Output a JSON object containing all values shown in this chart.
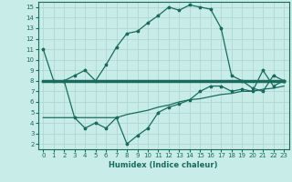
{
  "xlabel": "Humidex (Indice chaleur)",
  "xlim": [
    -0.5,
    23.5
  ],
  "ylim": [
    1.5,
    15.5
  ],
  "xticks": [
    0,
    1,
    2,
    3,
    4,
    5,
    6,
    7,
    8,
    9,
    10,
    11,
    12,
    13,
    14,
    15,
    16,
    17,
    18,
    19,
    20,
    21,
    22,
    23
  ],
  "yticks": [
    2,
    3,
    4,
    5,
    6,
    7,
    8,
    9,
    10,
    11,
    12,
    13,
    14,
    15
  ],
  "bg_color": "#c8ece8",
  "line_color": "#1a6b5e",
  "grid_color": "#b0d8d0",
  "line1_x": [
    0,
    1,
    2,
    3,
    4,
    5,
    6,
    7,
    8,
    9,
    10,
    11,
    12,
    13,
    14,
    15,
    16,
    17,
    18,
    19,
    20,
    21,
    22,
    23
  ],
  "line1_y": [
    11.0,
    8.0,
    8.0,
    8.5,
    9.0,
    8.0,
    9.5,
    11.2,
    12.5,
    12.7,
    13.5,
    14.2,
    15.0,
    14.7,
    15.2,
    15.0,
    14.8,
    13.0,
    8.5,
    8.0,
    7.3,
    7.0,
    8.5,
    8.0
  ],
  "line2_x": [
    0,
    1,
    2,
    3,
    4,
    5,
    6,
    7,
    8,
    9,
    10,
    11,
    12,
    13,
    14,
    15,
    16,
    17,
    18,
    19,
    20,
    21,
    22,
    23
  ],
  "line2_y": [
    8.0,
    8.0,
    8.0,
    8.0,
    8.0,
    8.0,
    8.0,
    8.0,
    8.0,
    8.0,
    8.0,
    8.0,
    8.0,
    8.0,
    8.0,
    8.0,
    8.0,
    8.0,
    8.0,
    8.0,
    8.0,
    8.0,
    8.0,
    8.0
  ],
  "line3_x": [
    0,
    1,
    2,
    3,
    4,
    5,
    6,
    7,
    8,
    9,
    10,
    11,
    12,
    13,
    14,
    15,
    16,
    17,
    18,
    19,
    20,
    21,
    22,
    23
  ],
  "line3_y": [
    4.5,
    4.5,
    4.5,
    4.5,
    4.5,
    4.5,
    4.5,
    4.5,
    4.8,
    5.0,
    5.2,
    5.5,
    5.7,
    6.0,
    6.2,
    6.3,
    6.5,
    6.7,
    6.8,
    7.0,
    7.0,
    7.2,
    7.3,
    7.5
  ],
  "line4_x": [
    2,
    3,
    4,
    5,
    6,
    7,
    8,
    9,
    10,
    11,
    12,
    13,
    14,
    15,
    16,
    17,
    18,
    19,
    20,
    21,
    22,
    23
  ],
  "line4_y": [
    8.0,
    4.5,
    3.5,
    4.0,
    3.5,
    4.5,
    2.0,
    2.8,
    3.5,
    5.0,
    5.5,
    5.8,
    6.2,
    7.0,
    7.5,
    7.5,
    7.0,
    7.2,
    7.0,
    9.0,
    7.5,
    8.0
  ]
}
